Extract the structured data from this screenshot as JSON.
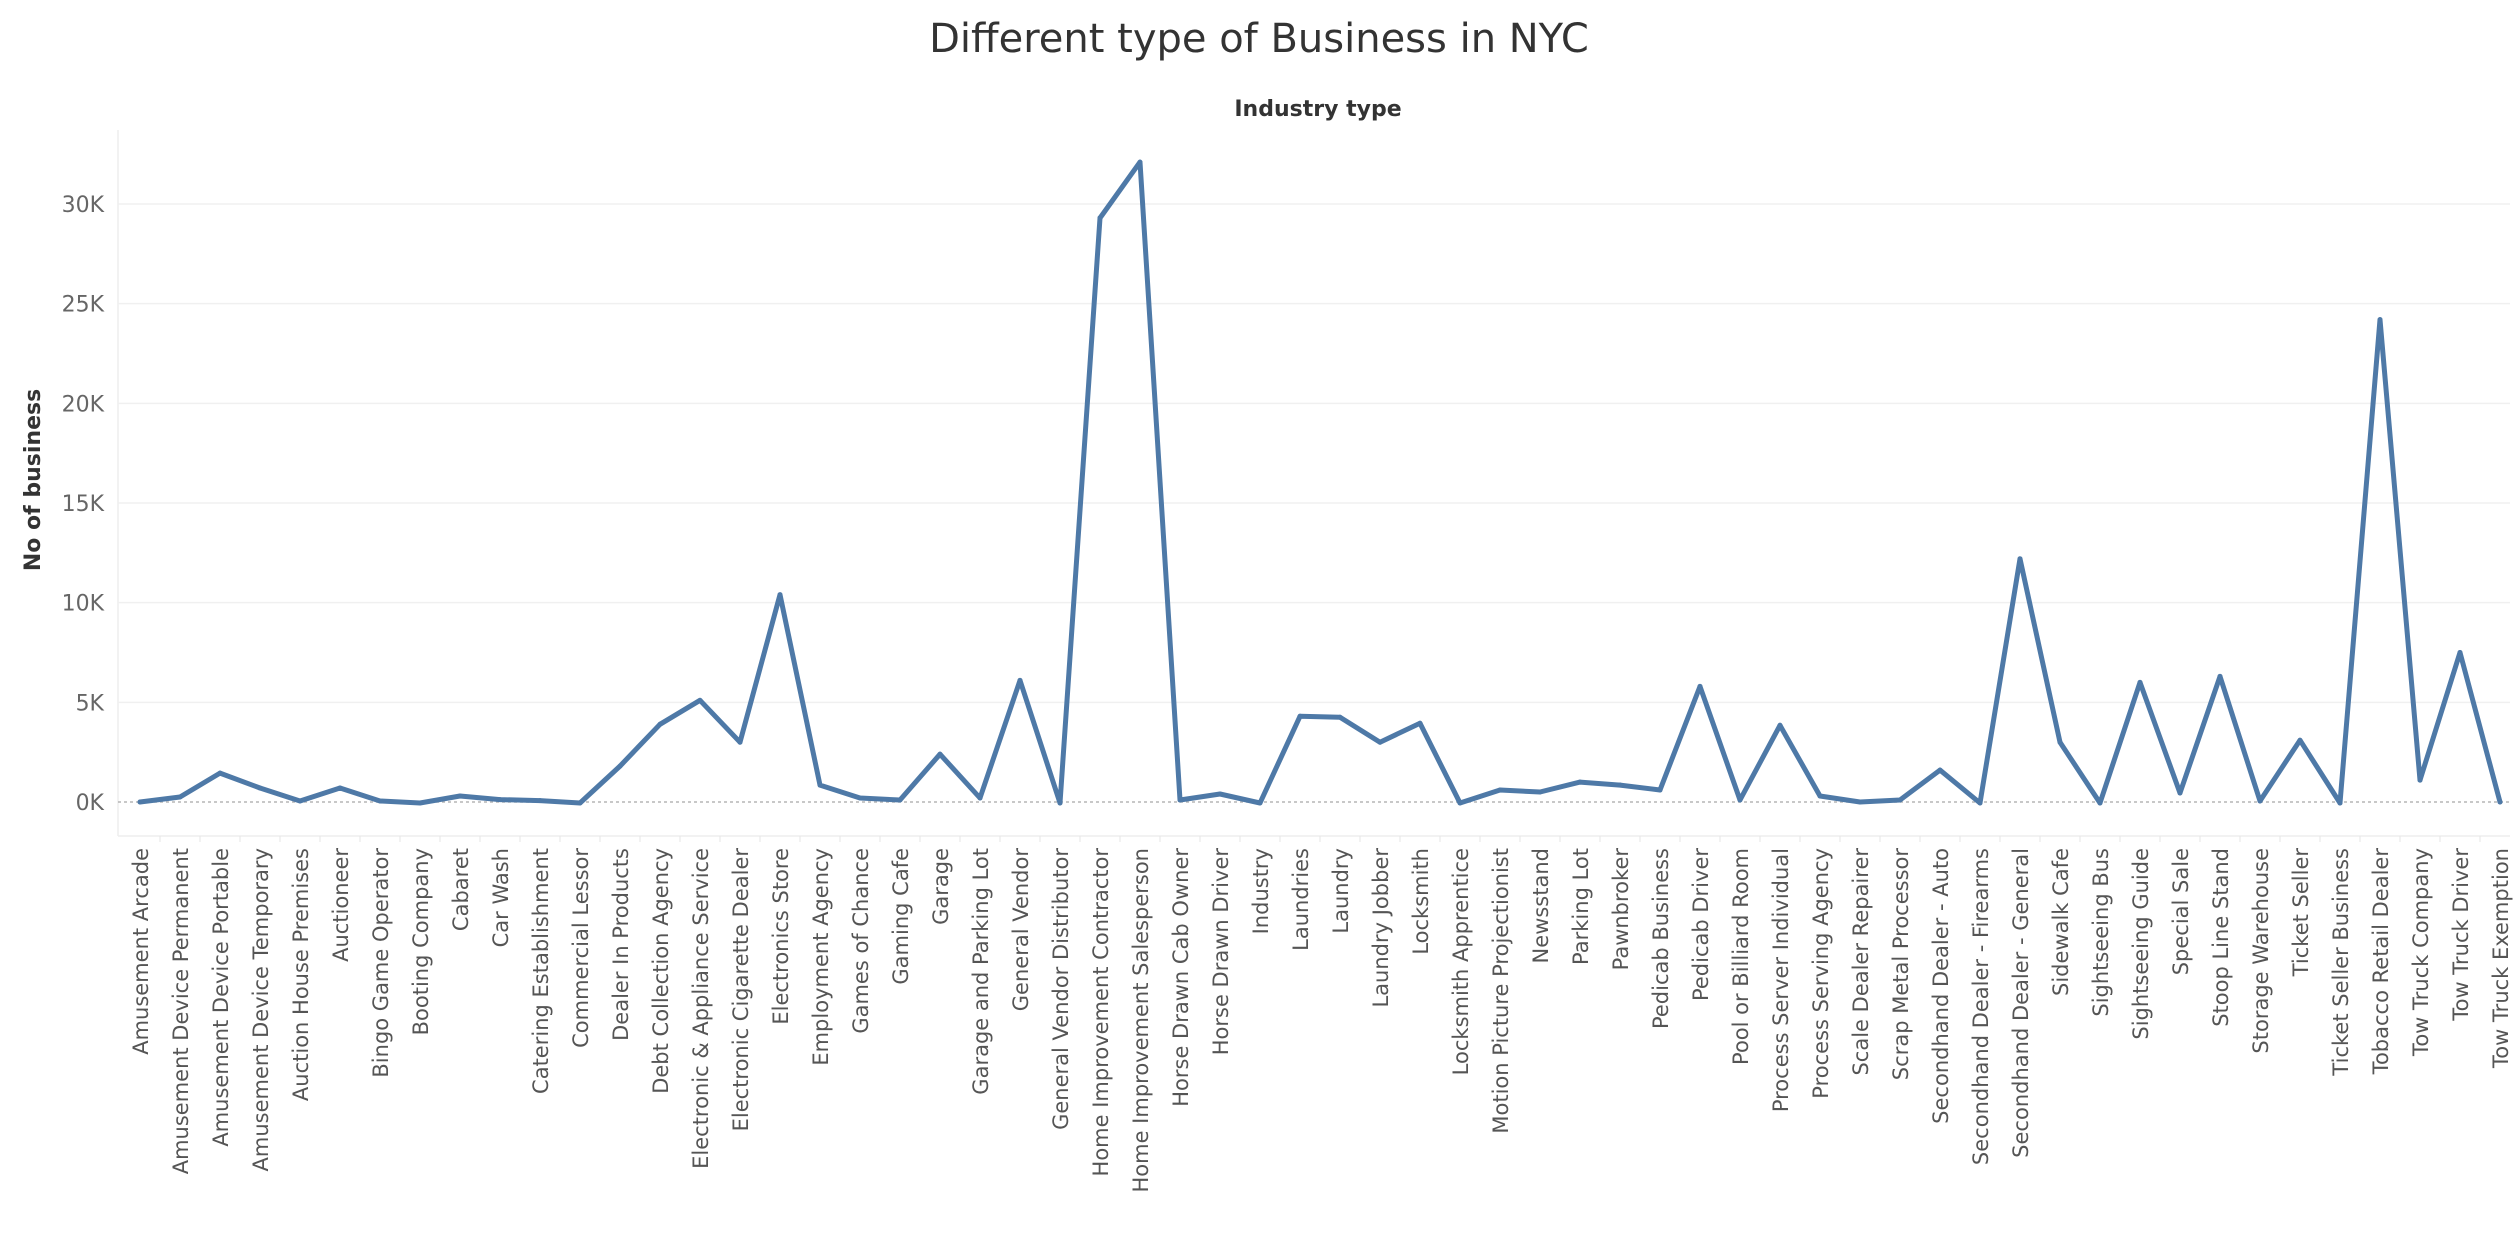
{
  "chart_data": {
    "type": "line",
    "title": "Different type of Business in NYC",
    "header_label": "Industry type",
    "ylabel": "No of business",
    "xlabel": "",
    "ylim": [
      -1600,
      32000
    ],
    "yticks": [
      0,
      5000,
      10000,
      15000,
      20000,
      25000,
      30000
    ],
    "ytick_labels": [
      "0K",
      "5K",
      "10K",
      "15K",
      "20K",
      "25K",
      "30K"
    ],
    "grid": true,
    "line_color": "#4e79a7",
    "categories": [
      "Amusement Arcade",
      "Amusement Device Permanent",
      "Amusement Device Portable",
      "Amusement Device Temporary",
      "Auction House Premises",
      "Auctioneer",
      "Bingo Game Operator",
      "Booting Company",
      "Cabaret",
      "Car Wash",
      "Catering Establishment",
      "Commercial Lessor",
      "Dealer In Products",
      "Debt Collection Agency",
      "Electronic & Appliance Service",
      "Electronic Cigarette Dealer",
      "Electronics Store",
      "Employment Agency",
      "Games of Chance",
      "Gaming Cafe",
      "Garage",
      "Garage and Parking Lot",
      "General Vendor",
      "General Vendor Distributor",
      "Home Improvement Contractor",
      "Home Improvement Salesperson",
      "Horse Drawn Cab Owner",
      "Horse Drawn Driver",
      "Industry",
      "Laundries",
      "Laundry",
      "Laundry Jobber",
      "Locksmith",
      "Locksmith Apprentice",
      "Motion Picture Projectionist",
      "Newsstand",
      "Parking Lot",
      "Pawnbroker",
      "Pedicab Business",
      "Pedicab Driver",
      "Pool or Billiard Room",
      "Process Server Individual",
      "Process Serving Agency",
      "Scale Dealer Repairer",
      "Scrap Metal Processor",
      "Secondhand Dealer - Auto",
      "Secondhand Dealer - Firearms",
      "Secondhand Dealer - General",
      "Sidewalk Cafe",
      "Sightseeing Bus",
      "Sightseeing Guide",
      "Special Sale",
      "Stoop Line Stand",
      "Storage Warehouse",
      "Ticket Seller",
      "Ticket Seller Business",
      "Tobacco Retail Dealer",
      "Tow Truck Company",
      "Tow Truck Driver",
      "Tow Truck Exemption"
    ],
    "series": [
      {
        "values": [
          0,
          250,
          1450,
          700,
          50,
          700,
          50,
          -50,
          300,
          120,
          70,
          -50,
          1800,
          3900,
          5100,
          3000,
          10400,
          850,
          200,
          100,
          2400,
          200,
          6100,
          -50,
          29300,
          32100,
          100,
          400,
          -50,
          4300,
          4250,
          3000,
          3950,
          -50,
          600,
          500,
          1000,
          850,
          600,
          5800,
          100,
          3850,
          300,
          0,
          100,
          1600,
          -50,
          12200,
          3000,
          -50,
          6000,
          450,
          6300,
          50,
          3100,
          -50,
          24200,
          1100,
          7500,
          0
        ]
      }
    ]
  }
}
